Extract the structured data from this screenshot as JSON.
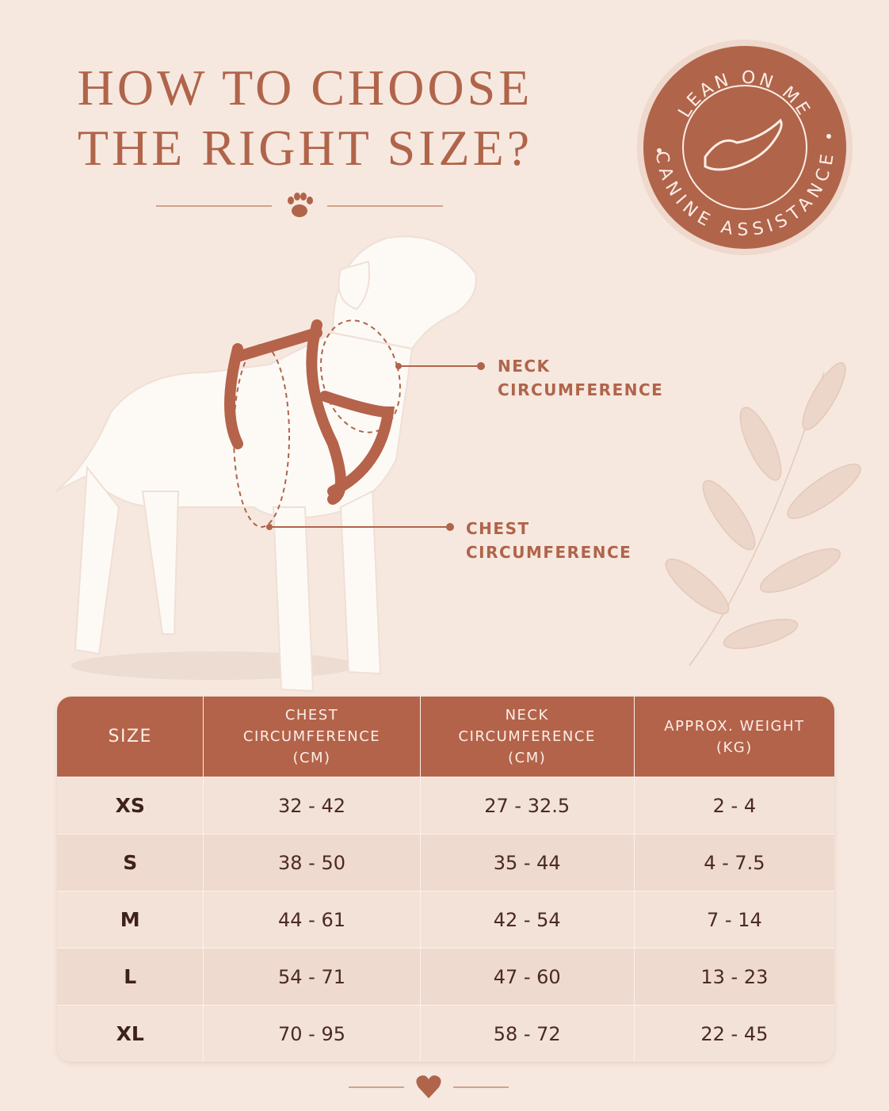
{
  "header": {
    "title_lines": [
      "HOW TO CHOOSE",
      "THE RIGHT SIZE?"
    ]
  },
  "badge": {
    "top": "LEAN ON ME",
    "bottom": "CANINE ASSISTANCE"
  },
  "callouts": {
    "neck": [
      "NECK",
      "CIRCUMFERENCE"
    ],
    "chest": [
      "CHEST",
      "CIRCUMFERENCE"
    ]
  },
  "table": {
    "headers": [
      [
        "SIZE"
      ],
      [
        "CHEST",
        "CIRCUMFERENCE",
        "(CM)"
      ],
      [
        "NECK",
        "CIRCUMFERENCE",
        "(CM)"
      ],
      [
        "APPROX. WEIGHT",
        "(KG)"
      ]
    ],
    "rows": [
      [
        "XS",
        "32 - 42",
        "27 - 32.5",
        "2 - 4"
      ],
      [
        "S",
        "38 - 50",
        "35 - 44",
        "4 - 7.5"
      ],
      [
        "M",
        "44 - 61",
        "42 - 54",
        "7 - 14"
      ],
      [
        "L",
        "54 - 71",
        "47 - 60",
        "13 - 23"
      ],
      [
        "XL",
        "70 - 95",
        "58 - 72",
        "22 - 45"
      ]
    ]
  }
}
